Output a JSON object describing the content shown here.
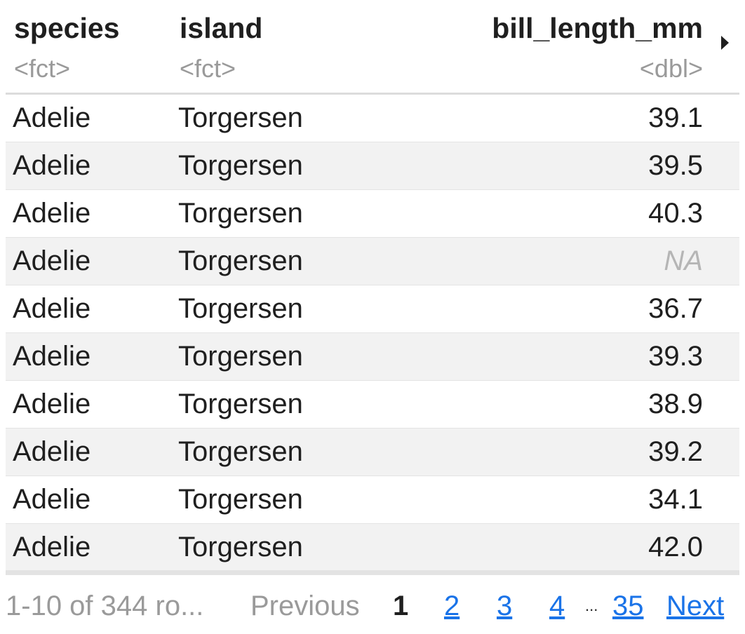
{
  "columns": [
    {
      "name": "species",
      "type": "<fct>"
    },
    {
      "name": "island",
      "type": "<fct>"
    },
    {
      "name": "bill_length_mm",
      "type": "<dbl>"
    }
  ],
  "rows": [
    {
      "species": "Adelie",
      "island": "Torgersen",
      "bill_length_mm": "39.1"
    },
    {
      "species": "Adelie",
      "island": "Torgersen",
      "bill_length_mm": "39.5"
    },
    {
      "species": "Adelie",
      "island": "Torgersen",
      "bill_length_mm": "40.3"
    },
    {
      "species": "Adelie",
      "island": "Torgersen",
      "bill_length_mm": "NA"
    },
    {
      "species": "Adelie",
      "island": "Torgersen",
      "bill_length_mm": "36.7"
    },
    {
      "species": "Adelie",
      "island": "Torgersen",
      "bill_length_mm": "39.3"
    },
    {
      "species": "Adelie",
      "island": "Torgersen",
      "bill_length_mm": "38.9"
    },
    {
      "species": "Adelie",
      "island": "Torgersen",
      "bill_length_mm": "39.2"
    },
    {
      "species": "Adelie",
      "island": "Torgersen",
      "bill_length_mm": "34.1"
    },
    {
      "species": "Adelie",
      "island": "Torgersen",
      "bill_length_mm": "42.0"
    }
  ],
  "pagination": {
    "info": "1-10 of 344 ro...",
    "previous": "Previous",
    "current": "1",
    "pages": [
      "2",
      "3",
      "4"
    ],
    "ellipsis": "...",
    "last": "35",
    "next": "Next"
  },
  "colors": {
    "link": "#1a73e8",
    "muted": "#9a9a9a",
    "stripe": "#f2f2f2"
  },
  "icons": {
    "scroll_right": "triangle-right-icon"
  }
}
